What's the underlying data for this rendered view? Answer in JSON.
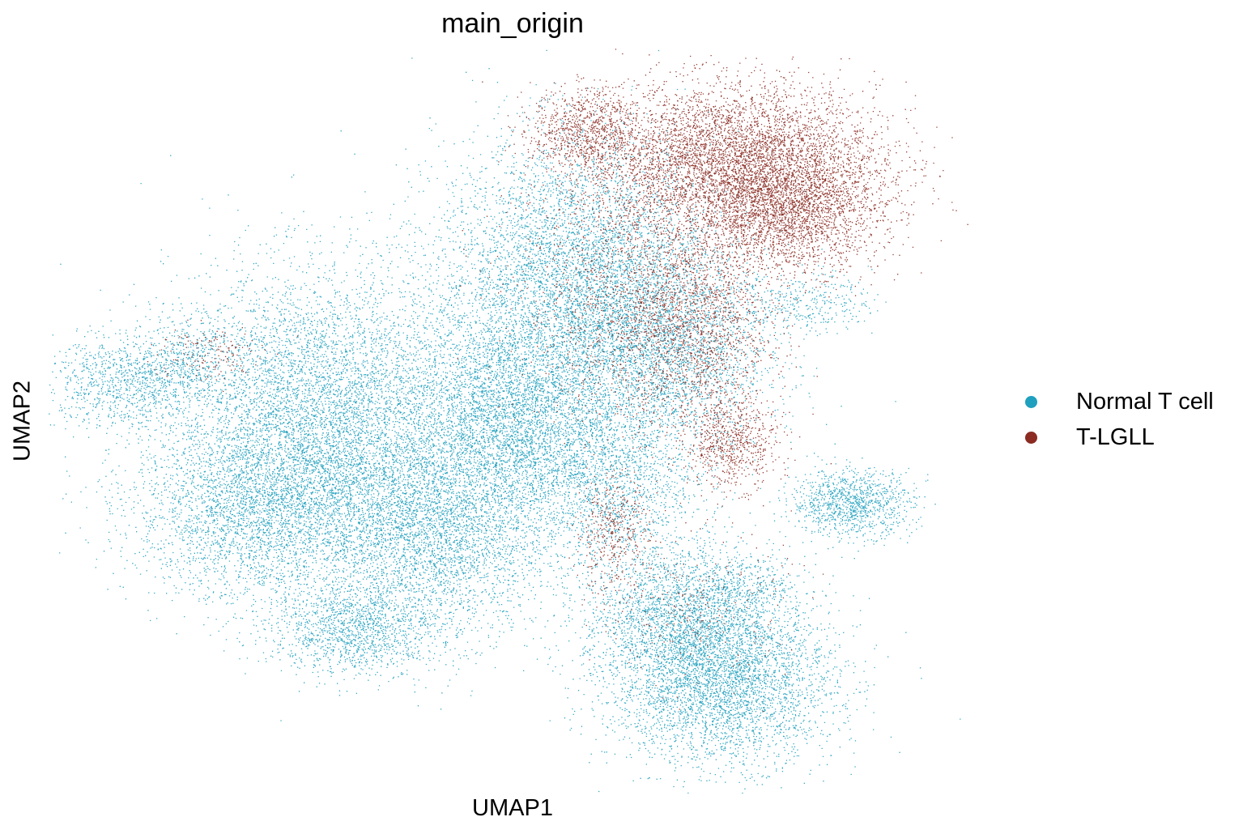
{
  "chart_data": {
    "type": "scatter",
    "title": "main_origin",
    "xlabel": "UMAP1",
    "ylabel": "UMAP2",
    "grid": false,
    "axes_visible": false,
    "legend_placement": "right",
    "xlim": [
      0,
      100
    ],
    "ylim": [
      0,
      100
    ],
    "series": [
      {
        "name": "Normal T cell",
        "color": "#1fa0be",
        "clusters": [
          {
            "x": 30,
            "y": 50,
            "sx": 8.5,
            "sy": 10,
            "n": 9000
          },
          {
            "x": 23,
            "y": 38,
            "sx": 7,
            "sy": 6,
            "n": 3000
          },
          {
            "x": 42,
            "y": 35,
            "sx": 6,
            "sy": 7,
            "n": 3500
          },
          {
            "x": 33,
            "y": 22,
            "sx": 4.5,
            "sy": 3,
            "n": 1300
          },
          {
            "x": 57,
            "y": 70,
            "sx": 7.5,
            "sy": 9,
            "n": 5500
          },
          {
            "x": 66,
            "y": 59,
            "sx": 6,
            "sy": 7,
            "n": 3000
          },
          {
            "x": 50,
            "y": 51,
            "sx": 5,
            "sy": 7,
            "n": 3500
          },
          {
            "x": 73,
            "y": 15,
            "sx": 6,
            "sy": 5.5,
            "n": 4000
          },
          {
            "x": 68,
            "y": 24,
            "sx": 5,
            "sy": 5,
            "n": 2200
          },
          {
            "x": 87,
            "y": 39,
            "sx": 3.3,
            "sy": 2.2,
            "n": 1100
          },
          {
            "x": 8,
            "y": 55,
            "sx": 4.5,
            "sy": 3,
            "n": 900
          },
          {
            "x": 15,
            "y": 58,
            "sx": 4,
            "sy": 3,
            "n": 500
          },
          {
            "x": 82,
            "y": 66,
            "sx": 3.5,
            "sy": 2,
            "n": 350
          },
          {
            "x": 60,
            "y": 42,
            "sx": 5,
            "sy": 6,
            "n": 1800
          },
          {
            "x": 76,
            "y": 28,
            "sx": 3,
            "sy": 2,
            "n": 300
          }
        ]
      },
      {
        "name": "T-LGLL",
        "color": "#8b2b22",
        "clusters": [
          {
            "x": 74,
            "y": 85,
            "sx": 8,
            "sy": 5,
            "n": 5500
          },
          {
            "x": 80,
            "y": 78,
            "sx": 5,
            "sy": 4,
            "n": 2500
          },
          {
            "x": 58,
            "y": 89,
            "sx": 2.8,
            "sy": 2.8,
            "n": 800
          },
          {
            "x": 70,
            "y": 63,
            "sx": 4,
            "sy": 7,
            "n": 1500
          },
          {
            "x": 74,
            "y": 47,
            "sx": 2.5,
            "sy": 3,
            "n": 700
          },
          {
            "x": 61,
            "y": 35,
            "sx": 2,
            "sy": 4,
            "n": 400
          },
          {
            "x": 63,
            "y": 66,
            "sx": 6,
            "sy": 8,
            "n": 1200
          },
          {
            "x": 17,
            "y": 59,
            "sx": 3,
            "sy": 2,
            "n": 150
          },
          {
            "x": 70,
            "y": 25,
            "sx": 5,
            "sy": 5,
            "n": 250
          }
        ]
      }
    ]
  }
}
